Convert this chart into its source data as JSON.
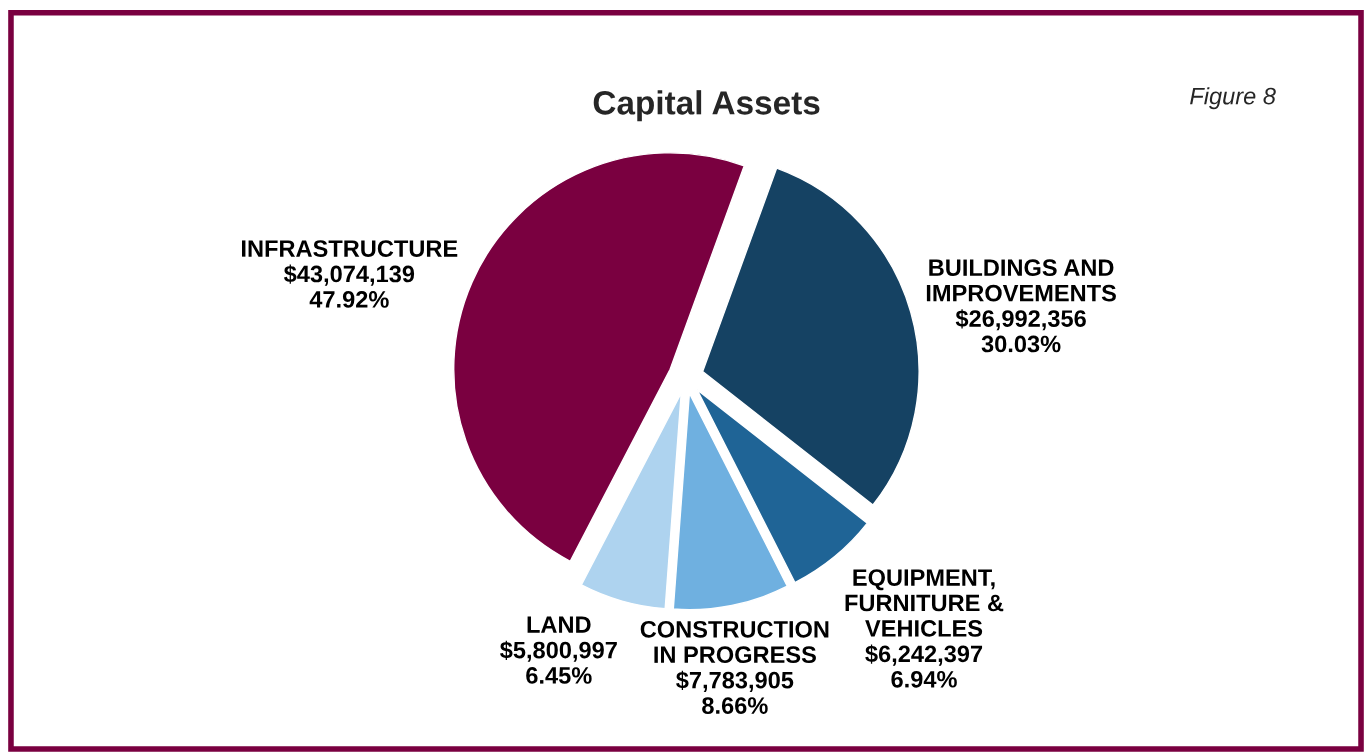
{
  "chart_data": {
    "type": "pie",
    "title": "Capital Assets",
    "annotations": [
      "Figure 8"
    ],
    "categories": [
      "BUILDINGS AND IMPROVEMENTS",
      "EQUIPMENT, FURNITURE & VEHICLES",
      "CONSTRUCTION IN PROGRESS",
      "LAND",
      "INFRASTRUCTURE"
    ],
    "values": [
      26992356,
      6242397,
      7783905,
      5800997,
      43074139
    ],
    "value_labels": [
      "$26,992,356\n30.03%",
      "$6,242,397\n6.94%",
      "$7,783,905\n8.66%",
      "$5,800,997\n6.45%",
      "$43,074,139\n47.92%"
    ],
    "colors": [
      "#154263",
      "#1f6496",
      "#6fb0e0",
      "#aed3ef",
      "#7a0040"
    ],
    "legend": false
  }
}
